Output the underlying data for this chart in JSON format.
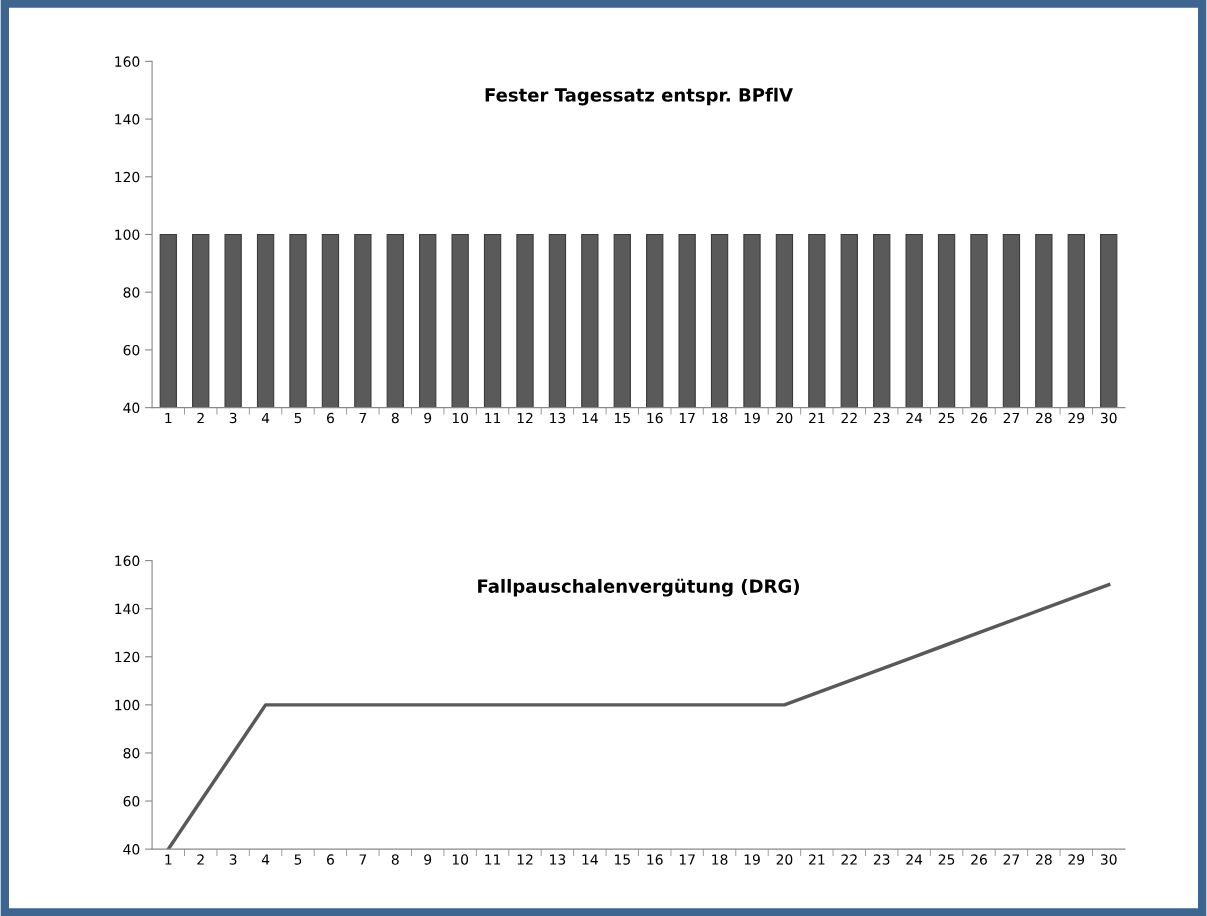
{
  "chart_data": [
    {
      "type": "bar",
      "title": "Fester Tagessatz entspr. BPflV",
      "categories": [
        "1",
        "2",
        "3",
        "4",
        "5",
        "6",
        "7",
        "8",
        "9",
        "10",
        "11",
        "12",
        "13",
        "14",
        "15",
        "16",
        "17",
        "18",
        "19",
        "20",
        "21",
        "22",
        "23",
        "24",
        "25",
        "26",
        "27",
        "28",
        "29",
        "30"
      ],
      "color": "#5a5a5a",
      "values": [
        100,
        100,
        100,
        100,
        100,
        100,
        100,
        100,
        100,
        100,
        100,
        100,
        100,
        100,
        100,
        100,
        100,
        100,
        100,
        100,
        100,
        100,
        100,
        100,
        100,
        100,
        100,
        100,
        100,
        100
      ],
      "ylim": [
        40,
        160
      ],
      "yticks": [
        40,
        60,
        80,
        100,
        120,
        140,
        160
      ],
      "grid": false
    },
    {
      "type": "line",
      "title": "Fallpauschalenvergütung (DRG)",
      "categories": [
        "1",
        "2",
        "3",
        "4",
        "5",
        "6",
        "7",
        "8",
        "9",
        "10",
        "11",
        "12",
        "13",
        "14",
        "15",
        "16",
        "17",
        "18",
        "19",
        "20",
        "21",
        "22",
        "23",
        "24",
        "25",
        "26",
        "27",
        "28",
        "29",
        "30"
      ],
      "color": "#595959",
      "values": [
        40,
        60,
        80,
        100,
        100,
        100,
        100,
        100,
        100,
        100,
        100,
        100,
        100,
        100,
        100,
        100,
        100,
        100,
        100,
        100,
        105,
        110,
        115,
        120,
        125,
        130,
        135,
        140,
        145,
        150
      ],
      "ylim": [
        40,
        160
      ],
      "yticks": [
        40,
        60,
        80,
        100,
        120,
        140,
        160
      ],
      "grid": false,
      "marker": "none"
    }
  ]
}
